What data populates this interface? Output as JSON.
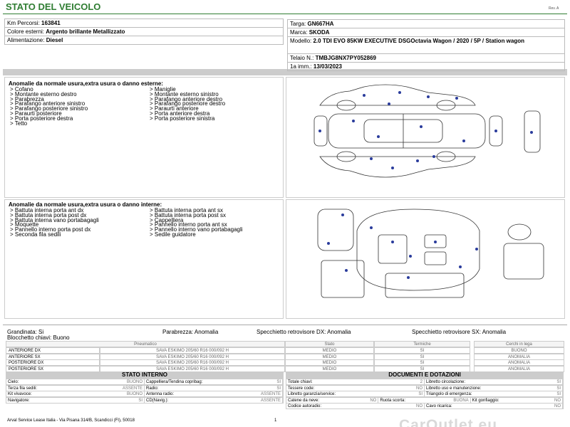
{
  "header": {
    "title": "STATO DEL VEICOLO",
    "revision": "Rev. A"
  },
  "vehicle": {
    "left": [
      {
        "label": "Km Percorsi:",
        "value": "163841"
      },
      {
        "label": "Colore esterni:",
        "value": "Argento brillante Metallizzato"
      },
      {
        "label": "Alimentazione:",
        "value": "Diesel"
      }
    ],
    "right": [
      {
        "label": "Targa:",
        "value": "GN667HA"
      },
      {
        "label": "Marca:",
        "value": "SKODA"
      },
      {
        "label": "Modello:",
        "value": "2.0 TDI EVO 85KW EXECUTIVE DSGOctavia Wagon / 2020 / 5P / Station wagon"
      },
      {
        "label": "Telaio N.:",
        "value": "TMBJG8NX7PY052869"
      },
      {
        "label": "1a imm.:",
        "value": "13/03/2023"
      }
    ]
  },
  "exterior": {
    "title": "Anomalie da normale usura,extra usura o danno esterne:",
    "items_left": [
      "> Cofano",
      "> Montante esterno destro",
      "> Parabrezza",
      "> Parafango anteriore sinistro",
      "> Parafango posteriore sinistro",
      "> Paraurti posteriore",
      "> Porta posteriore destra",
      "> Tetto"
    ],
    "items_right": [
      "> Maniglie",
      "> Montante esterno sinistro",
      "> Parafango anteriore destro",
      "> Parafango posteriore destro",
      "> Paraurti anteriore",
      "> Porta anteriore destra",
      "> Porta posteriore sinistra"
    ]
  },
  "interior": {
    "title": "Anomalie da normale usura,extra usura o danno interne:",
    "items_left": [
      "> Battuta interna porta ant dx",
      "> Battuta interna porta post dx",
      "> Battuta interna vano portabagagli",
      "> Moquette",
      "> Pannello interno porta post dx",
      "> Seconda fila sedili"
    ],
    "items_right": [
      "> Battuta interna porta ant sx",
      "> Battuta interna porta post sx",
      "> Cappelliera",
      "> Pannello interno porta ant sx",
      "> Pannello interno vano portabagagli",
      "> Sedile guidatore"
    ]
  },
  "status": {
    "left": [
      "Grandinata: Si",
      "Blocchetto chiavi: Buono"
    ],
    "right": [
      "Parabrezza: Anomalia",
      "Specchietto retrovisore DX: Anomalia",
      "Specchietto retrovisore SX: Anomalia"
    ]
  },
  "tires": {
    "headers": [
      "Pneumatico",
      "Stato",
      "Termiche",
      "Cerchi in lega"
    ],
    "rows": [
      [
        "ANTERIORE DX",
        "SAVA ESKIMO 205/60 R16 000/092 H",
        "MEDIO",
        "SI",
        "BUONO"
      ],
      [
        "ANTERIORE SX",
        "SAVA ESKIMO 205/60 R16 000/092 H",
        "MEDIO",
        "SI",
        "ANOMALIA"
      ],
      [
        "POSTERIORE DX",
        "SAVA ESKIMO 205/60 R16 000/092 H",
        "MEDIO",
        "SI",
        "ANOMALIA"
      ],
      [
        "POSTERIORE SX",
        "SAVA ESKIMO 205/60 R16 000/092 H",
        "MEDIO",
        "SI",
        "ANOMALIA"
      ]
    ]
  },
  "internal_state": {
    "title": "STATO INTERNO",
    "rows": [
      [
        {
          "label": "Cielo:",
          "value": "BUONO"
        },
        {
          "label": "Cappelliera/Tendina copribag:",
          "value": "SI"
        }
      ],
      [
        {
          "label": "Terza fila sedili:",
          "value": "ASSENTE"
        },
        {
          "label": "Radio:",
          "value": "SI"
        }
      ],
      [
        {
          "label": "Kit vivavoce:",
          "value": "BUONO"
        },
        {
          "label": "Antenna radio:",
          "value": "ASSENTE"
        }
      ],
      [
        {
          "label": "Navigatore:",
          "value": "SI"
        },
        {
          "label": "CD(Navig.):",
          "value": "ASSENTE"
        }
      ]
    ]
  },
  "documents": {
    "title": "DOCUMENTI E DOTAZIONI",
    "rows": [
      [
        {
          "label": "Totale chiavi:",
          "value": "2"
        },
        {
          "label": "Libretto circolazione:",
          "value": "SI"
        }
      ],
      [
        {
          "label": "Tessere code:",
          "value": "NO"
        },
        {
          "label": "Libretto uso e manutenzione:",
          "value": "SI"
        }
      ],
      [
        {
          "label": "Libretto garanzia/service:",
          "value": "SI"
        },
        {
          "label": "Triangolo di emergenza:",
          "value": "SI"
        }
      ],
      [
        {
          "label": "Catene da neve:",
          "value": "NO"
        },
        {
          "label": "Ruota scorta:",
          "value": "BUONA"
        },
        {
          "label": "Kit gonfiaggio:",
          "value": "NO"
        }
      ],
      [
        {
          "label": "Codice autoradio:",
          "value": "NO"
        },
        {
          "label": "Cavo ricarica:",
          "value": "NO"
        }
      ]
    ]
  },
  "footer": {
    "address": "Arval Service Lease Italia - Via Pisana 314/B, Scandicci (FI), 50018",
    "page": "1"
  },
  "watermark": "CarOutlet.eu"
}
